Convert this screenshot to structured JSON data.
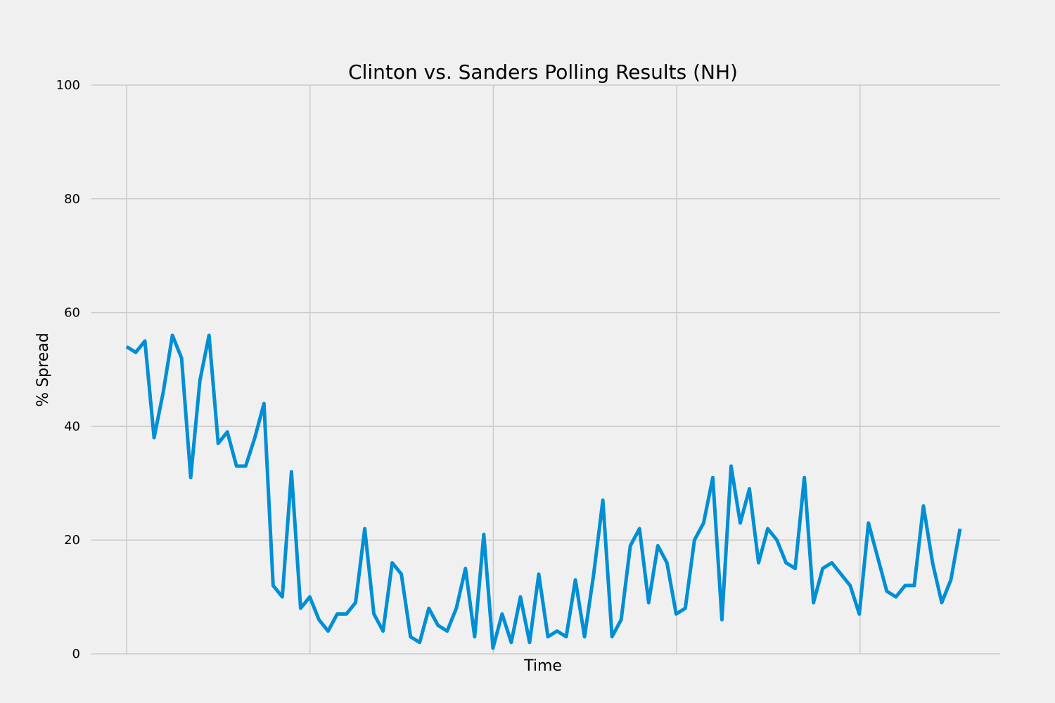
{
  "chart_data": {
    "type": "line",
    "title": "Clinton vs. Sanders Polling Results (NH)",
    "xlabel": "Time",
    "ylabel": "% Spread",
    "ylim": [
      0,
      100
    ],
    "yticks": [
      0,
      20,
      40,
      60,
      80,
      100
    ],
    "grid": true,
    "line_color": "#008fd5",
    "background": "#f0f0f0",
    "grid_color": "#cbcbcb",
    "series": [
      {
        "values": [
          54,
          53,
          55,
          38,
          46,
          56,
          52,
          31,
          48,
          56,
          37,
          39,
          33,
          33,
          38,
          44,
          12,
          10,
          32,
          8,
          10,
          6,
          4,
          7,
          7,
          9,
          22,
          7,
          4,
          16,
          14,
          3,
          2,
          8,
          5,
          4,
          8,
          15,
          3,
          21,
          1,
          7,
          2,
          10,
          2,
          14,
          3,
          4,
          3,
          13,
          3,
          14,
          27,
          3,
          6,
          19,
          22,
          9,
          19,
          16,
          7,
          8,
          20,
          23,
          31,
          6,
          33,
          23,
          29,
          16,
          22,
          20,
          16,
          15,
          31,
          9,
          15,
          16,
          14,
          12,
          7,
          23,
          17,
          11,
          10,
          12,
          12,
          26,
          16,
          9,
          13,
          22
        ]
      }
    ]
  }
}
